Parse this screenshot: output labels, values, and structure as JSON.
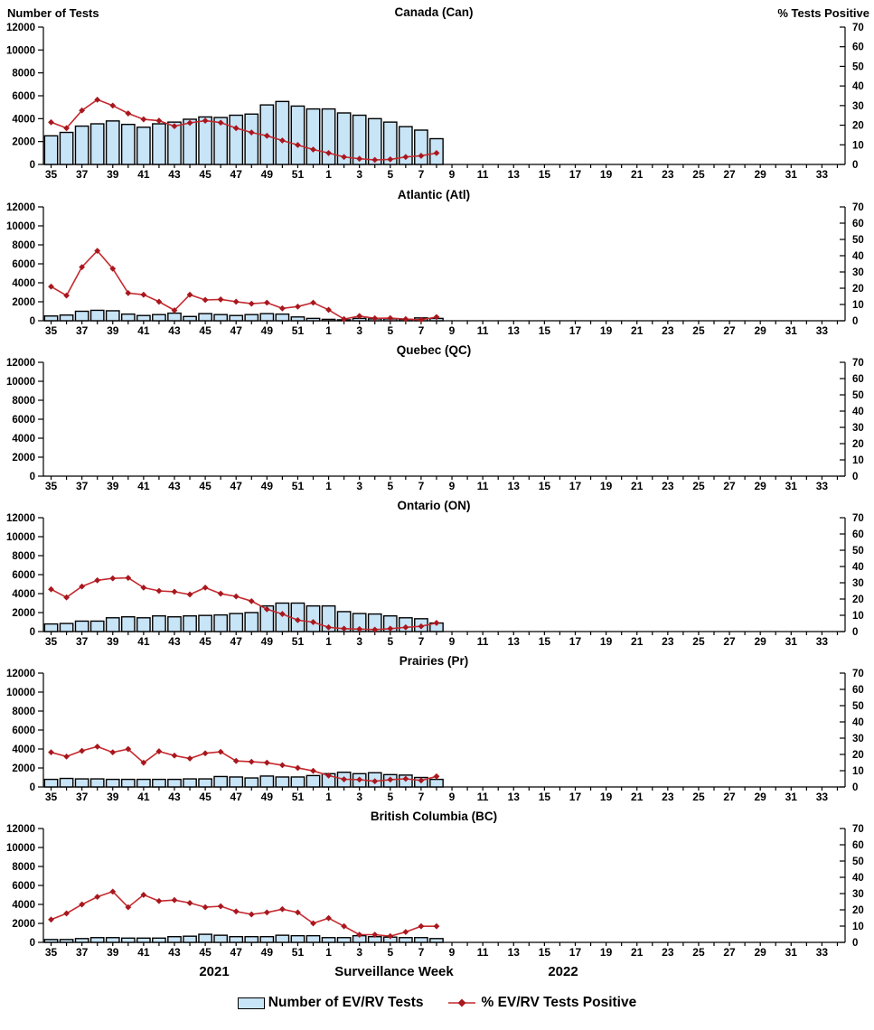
{
  "axes": {
    "left_title": "Number of Tests",
    "right_title": "% Tests Positive",
    "left_ticks": [
      0,
      2000,
      4000,
      6000,
      8000,
      10000,
      12000
    ],
    "right_ticks": [
      0,
      10,
      20,
      30,
      40,
      50,
      60,
      70
    ],
    "left_ylim": [
      0,
      12000
    ],
    "right_ylim": [
      0,
      70
    ],
    "weeks": [
      35,
      36,
      37,
      38,
      39,
      40,
      41,
      42,
      43,
      44,
      45,
      46,
      47,
      48,
      49,
      50,
      51,
      52,
      1,
      2,
      3,
      4,
      5,
      6,
      7,
      8,
      9,
      10,
      11,
      12,
      13,
      14,
      15,
      16,
      17,
      18,
      19,
      20,
      21,
      22,
      23,
      24,
      25,
      26,
      27,
      28,
      29,
      30,
      31,
      32,
      33,
      34
    ]
  },
  "footer": {
    "year_left": "2021",
    "axis_title": "Surveillance Week",
    "year_right": "2022"
  },
  "legend": {
    "bars_label": "Number of EV/RV Tests",
    "line_label": "% EV/RV Tests Positive"
  },
  "colors": {
    "bar_fill": "#C8E4F7",
    "bar_stroke": "#000000",
    "line": "#C42A2F",
    "marker": "#A8171D"
  },
  "chart_data": [
    {
      "type": "bar+line",
      "id": "canada",
      "title": "Canada (Can)",
      "data_weeks": [
        35,
        36,
        37,
        38,
        39,
        40,
        41,
        42,
        43,
        44,
        45,
        46,
        47,
        48,
        49,
        50,
        51,
        52,
        1,
        2,
        3,
        4,
        5,
        6,
        7,
        8
      ],
      "bars_series": "Number of EV/RV Tests",
      "bars": [
        2500,
        2800,
        3350,
        3550,
        3800,
        3500,
        3250,
        3550,
        3700,
        3950,
        4150,
        4100,
        4300,
        4400,
        5200,
        5500,
        5100,
        4850,
        4850,
        4500,
        4300,
        4000,
        3700,
        3300,
        3000,
        2250
      ],
      "line_series": "% EV/RV Tests Positive",
      "line_pct": [
        21.5,
        18.5,
        27.5,
        33,
        30,
        26,
        23,
        22.3,
        19.5,
        21.2,
        22.3,
        21.3,
        18.5,
        16.3,
        14.6,
        12.2,
        9.9,
        7.6,
        5.8,
        3.8,
        2.9,
        2.3,
        2.6,
        3.8,
        4.4,
        5.8
      ]
    },
    {
      "type": "bar+line",
      "id": "atlantic",
      "title": "Atlantic (Atl)",
      "data_weeks": [
        35,
        36,
        37,
        38,
        39,
        40,
        41,
        42,
        43,
        44,
        45,
        46,
        47,
        48,
        49,
        50,
        51,
        52,
        1,
        2,
        3,
        4,
        5,
        6,
        7,
        8
      ],
      "bars_series": "Number of EV/RV Tests",
      "bars": [
        500,
        600,
        1000,
        1100,
        1050,
        700,
        550,
        650,
        800,
        450,
        750,
        650,
        550,
        650,
        750,
        700,
        400,
        250,
        150,
        100,
        250,
        200,
        200,
        150,
        300,
        250
      ],
      "line_series": "% EV/RV Tests Positive",
      "line_pct": [
        21,
        15.5,
        33,
        43,
        32,
        17,
        16,
        11.7,
        6.4,
        16,
        12.8,
        13.1,
        11.7,
        10.5,
        11.1,
        7.6,
        8.7,
        11.1,
        6.7,
        1,
        2.9,
        1.5,
        1.6,
        1,
        0.6,
        2.3
      ]
    },
    {
      "type": "bar+line",
      "id": "quebec",
      "title": "Quebec (QC)",
      "data_weeks": [],
      "bars_series": "Number of EV/RV Tests",
      "bars": [],
      "line_series": "% EV/RV Tests Positive",
      "line_pct": []
    },
    {
      "type": "bar+line",
      "id": "ontario",
      "title": "Ontario (ON)",
      "data_weeks": [
        35,
        36,
        37,
        38,
        39,
        40,
        41,
        42,
        43,
        44,
        45,
        46,
        47,
        48,
        49,
        50,
        51,
        52,
        1,
        2,
        3,
        4,
        5,
        6,
        7,
        8
      ],
      "bars_series": "Number of EV/RV Tests",
      "bars": [
        800,
        850,
        1100,
        1100,
        1450,
        1550,
        1450,
        1650,
        1550,
        1650,
        1700,
        1750,
        1900,
        2000,
        2700,
        3000,
        3000,
        2700,
        2700,
        2100,
        1900,
        1850,
        1650,
        1450,
        1350,
        900
      ],
      "line_series": "% EV/RV Tests Positive",
      "line_pct": [
        26,
        21,
        27.7,
        31.5,
        32.7,
        33,
        27,
        25,
        24.5,
        22.8,
        27,
        23.3,
        21.6,
        18.7,
        13.7,
        10.8,
        7,
        5.8,
        2.6,
        1.8,
        1.5,
        1.2,
        1.8,
        2.6,
        3.2,
        5.3
      ]
    },
    {
      "type": "bar+line",
      "id": "prairies",
      "title": "Prairies (Pr)",
      "data_weeks": [
        35,
        36,
        37,
        38,
        39,
        40,
        41,
        42,
        43,
        44,
        45,
        46,
        47,
        48,
        49,
        50,
        51,
        52,
        1,
        2,
        3,
        4,
        5,
        6,
        7,
        8
      ],
      "bars_series": "Number of EV/RV Tests",
      "bars": [
        800,
        900,
        850,
        850,
        800,
        800,
        800,
        800,
        800,
        850,
        850,
        1100,
        1050,
        950,
        1150,
        1050,
        1050,
        1200,
        1400,
        1550,
        1400,
        1500,
        1300,
        1250,
        1000,
        800
      ],
      "line_series": "% EV/RV Tests Positive",
      "line_pct": [
        21.3,
        18.7,
        22.2,
        24.8,
        21.3,
        23.3,
        14.9,
        21.9,
        19.3,
        17.5,
        20.7,
        21.6,
        16,
        15.5,
        14.9,
        13.4,
        11.7,
        9.9,
        7,
        4.7,
        4.5,
        3.5,
        4.5,
        5,
        4,
        6.5
      ]
    },
    {
      "type": "bar+line",
      "id": "british-columbia",
      "title": "British Columbia (BC)",
      "data_weeks": [
        35,
        36,
        37,
        38,
        39,
        40,
        41,
        42,
        43,
        44,
        45,
        46,
        47,
        48,
        49,
        50,
        51,
        52,
        1,
        2,
        3,
        4,
        5,
        6,
        7,
        8
      ],
      "bars_series": "Number of EV/RV Tests",
      "bars": [
        300,
        300,
        400,
        500,
        500,
        450,
        450,
        450,
        600,
        650,
        850,
        750,
        600,
        600,
        600,
        750,
        700,
        700,
        500,
        500,
        700,
        600,
        550,
        500,
        500,
        400
      ],
      "line_series": "% EV/RV Tests Positive",
      "line_pct": [
        14,
        17.8,
        23.3,
        28,
        31.2,
        21.6,
        29.2,
        25.4,
        26,
        24.2,
        21.6,
        22.2,
        19,
        17.2,
        18.4,
        20.4,
        18.4,
        11.7,
        14.9,
        9.9,
        4.7,
        4.7,
        3.8,
        6.4,
        9.9,
        9.9
      ]
    }
  ]
}
